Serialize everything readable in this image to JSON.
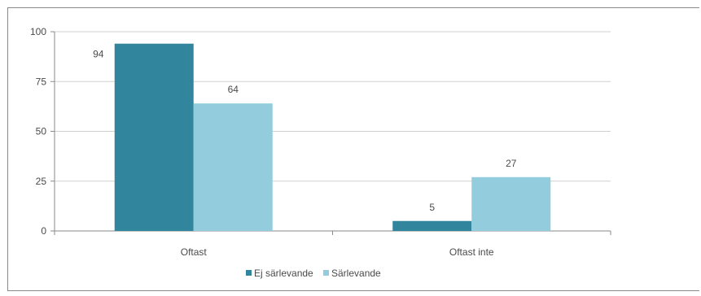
{
  "chart_data": {
    "type": "bar",
    "title": "",
    "xlabel": "",
    "ylabel": "",
    "categories": [
      "Oftast",
      "Oftast inte"
    ],
    "series": [
      {
        "name": "Ej särlevande",
        "values": [
          94,
          5
        ],
        "color": "#31859c"
      },
      {
        "name": "Särlevande",
        "values": [
          64,
          27
        ],
        "color": "#93cddd"
      }
    ],
    "ylim": [
      0,
      100
    ],
    "yticks": [
      0,
      25,
      50,
      75,
      100
    ],
    "grid": true,
    "legend": "bottom",
    "data_labels": true
  }
}
